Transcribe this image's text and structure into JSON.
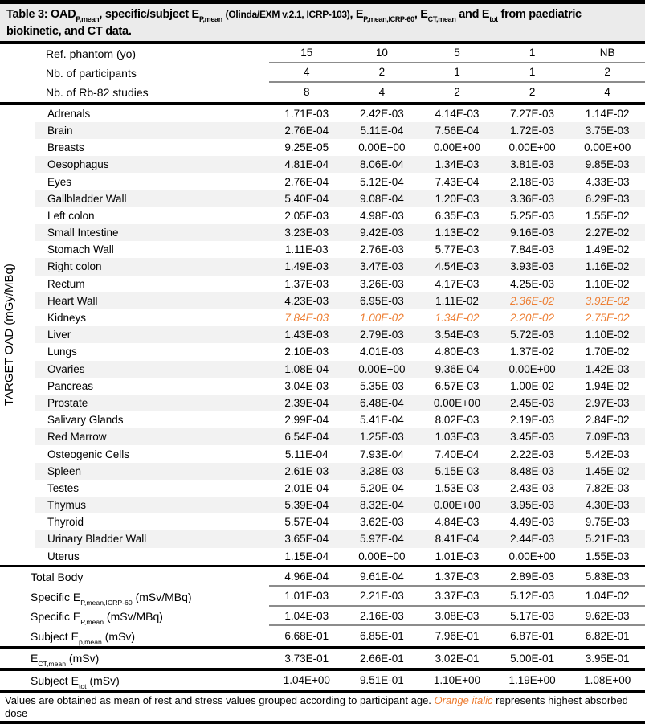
{
  "colors": {
    "orange_highlight": "#ED7D31",
    "row_stripe": "#F2F2F2",
    "title_background": "#EBEBEB",
    "rule_gray": "#8C8C8C"
  },
  "title": {
    "segments": [
      {
        "t": "Table 3: OAD"
      },
      {
        "sub": "P,mean"
      },
      {
        "t": ", specific/subject E"
      },
      {
        "sub": "P,mean"
      },
      {
        "t": " "
      },
      {
        "small": "(Olinda/EXM v.2.1, ICRP-103)"
      },
      {
        "t": ", E"
      },
      {
        "sub": "P,mean,ICRP-60"
      },
      {
        "t": ", E"
      },
      {
        "sub": "CT,mean"
      },
      {
        "t": " and E"
      },
      {
        "sub": "tot"
      },
      {
        "t": " from paediatric biokinetic, and CT data."
      }
    ]
  },
  "header_rows": [
    {
      "label": "Ref. phantom (yo)",
      "values": [
        "15",
        "10",
        "5",
        "1",
        "NB"
      ],
      "underline": true
    },
    {
      "label": "Nb. of participants",
      "values": [
        "4",
        "2",
        "1",
        "1",
        "2"
      ],
      "underline": true
    },
    {
      "label": "Nb. of Rb-82 studies",
      "values": [
        "8",
        "4",
        "2",
        "2",
        "4"
      ],
      "underline": false
    }
  ],
  "target_oad": {
    "axis_label": "TARGET OAD (mGy/MBq)",
    "rows": [
      {
        "organ": "Adrenals",
        "values": [
          "1.71E-03",
          "2.42E-03",
          "4.14E-03",
          "7.27E-03",
          "1.14E-02"
        ]
      },
      {
        "organ": "Brain",
        "values": [
          "2.76E-04",
          "5.11E-04",
          "7.56E-04",
          "1.72E-03",
          "3.75E-03"
        ]
      },
      {
        "organ": "Breasts",
        "values": [
          "9.25E-05",
          "0.00E+00",
          "0.00E+00",
          "0.00E+00",
          "0.00E+00"
        ]
      },
      {
        "organ": "Oesophagus",
        "values": [
          "4.81E-04",
          "8.06E-04",
          "1.34E-03",
          "3.81E-03",
          "9.85E-03"
        ]
      },
      {
        "organ": "Eyes",
        "values": [
          "2.76E-04",
          "5.12E-04",
          "7.43E-04",
          "2.18E-03",
          "4.33E-03"
        ]
      },
      {
        "organ": "Gallbladder Wall",
        "values": [
          "5.40E-04",
          "9.08E-04",
          "1.20E-03",
          "3.36E-03",
          "6.29E-03"
        ]
      },
      {
        "organ": "Left colon",
        "values": [
          "2.05E-03",
          "4.98E-03",
          "6.35E-03",
          "5.25E-03",
          "1.55E-02"
        ]
      },
      {
        "organ": "Small Intestine",
        "values": [
          "3.23E-03",
          "9.42E-03",
          "1.13E-02",
          "9.16E-03",
          "2.27E-02"
        ]
      },
      {
        "organ": "Stomach Wall",
        "values": [
          "1.11E-03",
          "2.76E-03",
          "5.77E-03",
          "7.84E-03",
          "1.49E-02"
        ]
      },
      {
        "organ": "Right colon",
        "values": [
          "1.49E-03",
          "3.47E-03",
          "4.54E-03",
          "3.93E-03",
          "1.16E-02"
        ]
      },
      {
        "organ": "Rectum",
        "values": [
          "1.37E-03",
          "3.26E-03",
          "4.17E-03",
          "4.25E-03",
          "1.10E-02"
        ]
      },
      {
        "organ": "Heart Wall",
        "values": [
          "4.23E-03",
          "6.95E-03",
          "1.11E-02",
          "2.36E-02",
          "3.92E-02"
        ],
        "highlight": [
          false,
          false,
          false,
          true,
          true
        ]
      },
      {
        "organ": "Kidneys",
        "values": [
          "7.84E-03",
          "1.00E-02",
          "1.34E-02",
          "2.20E-02",
          "2.75E-02"
        ],
        "highlight": [
          true,
          true,
          true,
          true,
          true
        ]
      },
      {
        "organ": "Liver",
        "values": [
          "1.43E-03",
          "2.79E-03",
          "3.54E-03",
          "5.72E-03",
          "1.10E-02"
        ]
      },
      {
        "organ": "Lungs",
        "values": [
          "2.10E-03",
          "4.01E-03",
          "4.80E-03",
          "1.37E-02",
          "1.70E-02"
        ]
      },
      {
        "organ": "Ovaries",
        "values": [
          "1.08E-04",
          "0.00E+00",
          "9.36E-04",
          "0.00E+00",
          "1.42E-03"
        ]
      },
      {
        "organ": "Pancreas",
        "values": [
          "3.04E-03",
          "5.35E-03",
          "6.57E-03",
          "1.00E-02",
          "1.94E-02"
        ]
      },
      {
        "organ": "Prostate",
        "values": [
          "2.39E-04",
          "6.48E-04",
          "0.00E+00",
          "2.45E-03",
          "2.97E-03"
        ]
      },
      {
        "organ": "Salivary Glands",
        "values": [
          "2.99E-04",
          "5.41E-04",
          "8.02E-03",
          "2.19E-03",
          "2.84E-02"
        ]
      },
      {
        "organ": "Red Marrow",
        "values": [
          "6.54E-04",
          "1.25E-03",
          "1.03E-03",
          "3.45E-03",
          "7.09E-03"
        ]
      },
      {
        "organ": "Osteogenic Cells",
        "values": [
          "5.11E-04",
          "7.93E-04",
          "7.40E-04",
          "2.22E-03",
          "5.42E-03"
        ]
      },
      {
        "organ": "Spleen",
        "values": [
          "2.61E-03",
          "3.28E-03",
          "5.15E-03",
          "8.48E-03",
          "1.45E-02"
        ]
      },
      {
        "organ": "Testes",
        "values": [
          "2.01E-04",
          "5.20E-04",
          "1.53E-03",
          "2.43E-03",
          "7.82E-03"
        ]
      },
      {
        "organ": "Thymus",
        "values": [
          "5.39E-04",
          "8.32E-04",
          "0.00E+00",
          "3.95E-03",
          "4.30E-03"
        ]
      },
      {
        "organ": "Thyroid",
        "values": [
          "5.57E-04",
          "3.62E-03",
          "4.84E-03",
          "4.49E-03",
          "9.75E-03"
        ]
      },
      {
        "organ": "Urinary Bladder Wall",
        "values": [
          "3.65E-04",
          "5.97E-04",
          "8.41E-04",
          "2.44E-03",
          "5.21E-03"
        ]
      },
      {
        "organ": "Uterus",
        "values": [
          "1.15E-04",
          "0.00E+00",
          "1.01E-03",
          "0.00E+00",
          "1.55E-03"
        ]
      }
    ]
  },
  "summary_rows": [
    {
      "label_segments": [
        {
          "t": "Total Body"
        }
      ],
      "values": [
        "4.96E-04",
        "9.61E-04",
        "1.37E-03",
        "2.89E-03",
        "5.83E-03"
      ],
      "underline": true
    },
    {
      "label_segments": [
        {
          "t": "Specific E"
        },
        {
          "sub": "P,mean,ICRP-60"
        },
        {
          "t": " (mSv/MBq)"
        }
      ],
      "values": [
        "1.01E-03",
        "2.21E-03",
        "3.37E-03",
        "5.12E-03",
        "1.04E-02"
      ],
      "underline": true
    },
    {
      "label_segments": [
        {
          "t": "Specific E"
        },
        {
          "sub": "P,mean"
        },
        {
          "t": " (mSv/MBq)"
        }
      ],
      "values": [
        "1.04E-03",
        "2.16E-03",
        "3.08E-03",
        "5.17E-03",
        "9.62E-03"
      ],
      "underline": true
    },
    {
      "label_segments": [
        {
          "t": "Subject E"
        },
        {
          "sub": "p,mean"
        },
        {
          "t": " (mSv)"
        }
      ],
      "values": [
        "6.68E-01",
        "6.85E-01",
        "7.96E-01",
        "6.87E-01",
        "6.82E-01"
      ],
      "underline": false
    }
  ],
  "ect_row": {
    "label_segments": [
      {
        "t": "E"
      },
      {
        "sub": "CT,mean"
      },
      {
        "t": " (mSv)"
      }
    ],
    "values": [
      "3.73E-01",
      "2.66E-01",
      "3.02E-01",
      "5.00E-01",
      "3.95E-01"
    ]
  },
  "etot_row": {
    "label_segments": [
      {
        "t": "Subject E"
      },
      {
        "sub": "tot"
      },
      {
        "t": " (mSv)"
      }
    ],
    "values": [
      "1.04E+00",
      "9.51E-01",
      "1.10E+00",
      "1.19E+00",
      "1.08E+00"
    ]
  },
  "footnote": {
    "segments": [
      {
        "t": "Values are obtained as mean of rest and stress values grouped according to participant age. "
      },
      {
        "oi": "Orange italic"
      },
      {
        "t": " represents highest absorbed dose"
      }
    ]
  }
}
